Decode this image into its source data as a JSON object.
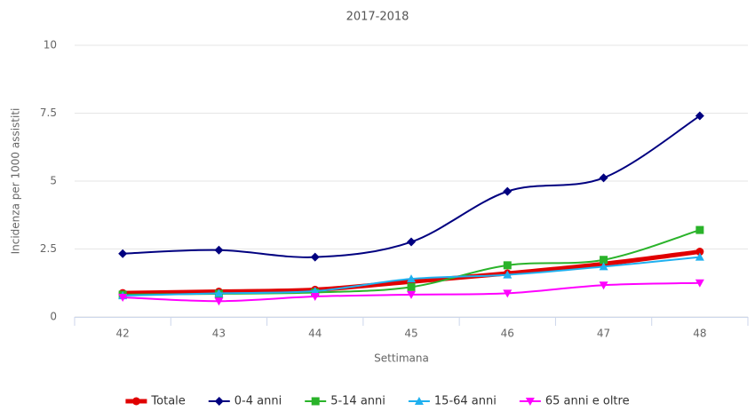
{
  "chart_data": {
    "type": "line",
    "title": "2017-2018",
    "x_label": "Settimana",
    "y_label": "Incidenza per 1000 assistiti",
    "categories": [
      "42",
      "43",
      "44",
      "45",
      "46",
      "47",
      "48"
    ],
    "ylim": [
      0,
      10
    ],
    "yticks": [
      0,
      2.5,
      5,
      7.5,
      10
    ],
    "grid": true,
    "legend": "bottom",
    "smooth": true,
    "series": [
      {
        "name": "Totale",
        "color": "#e00000",
        "marker": "circle",
        "values": [
          0.88,
          0.93,
          1.0,
          1.3,
          1.6,
          1.95,
          2.4
        ]
      },
      {
        "name": "0-4 anni",
        "color": "#000080",
        "marker": "diamond",
        "values": [
          2.33,
          2.46,
          2.2,
          2.76,
          4.62,
          5.12,
          7.4
        ]
      },
      {
        "name": "5-14 anni",
        "color": "#2ab32a",
        "marker": "square",
        "values": [
          0.82,
          0.85,
          0.9,
          1.1,
          1.9,
          2.1,
          3.2
        ]
      },
      {
        "name": "15-64 anni",
        "color": "#1fb0ef",
        "marker": "triangle",
        "values": [
          0.78,
          0.87,
          0.95,
          1.4,
          1.55,
          1.85,
          2.2
        ]
      },
      {
        "name": "65 anni e oltre",
        "color": "#ff00ff",
        "marker": "triangle-down",
        "values": [
          0.72,
          0.58,
          0.75,
          0.82,
          0.87,
          1.17,
          1.25
        ]
      }
    ]
  }
}
